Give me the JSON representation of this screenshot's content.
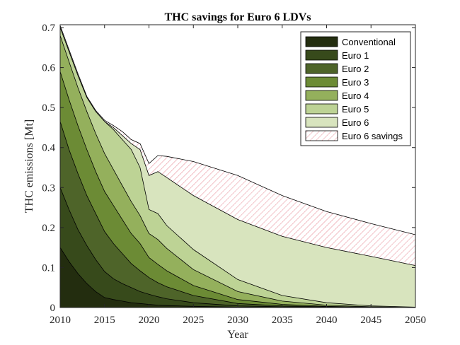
{
  "chart_data": {
    "type": "area",
    "title": "THC savings for Euro 6 LDVs",
    "xlabel": "Year",
    "ylabel": "THC emissions [Mt]",
    "xlim": [
      2010,
      2050
    ],
    "ylim": [
      0,
      0.7
    ],
    "xticks": [
      "2010",
      "2015",
      "2020",
      "2025",
      "2030",
      "2035",
      "2040",
      "2045",
      "2050"
    ],
    "yticks": [
      "0",
      "0.1",
      "0.2",
      "0.3",
      "0.4",
      "0.5",
      "0.6",
      "0.7"
    ],
    "legend_position": "top-right",
    "stacking": "cumulative",
    "x": [
      2010,
      2011,
      2012,
      2013,
      2014,
      2015,
      2016,
      2017,
      2018,
      2019,
      2020,
      2021,
      2022,
      2025,
      2030,
      2035,
      2040,
      2045,
      2050
    ],
    "series": [
      {
        "name": "Conventional",
        "color": "#232d0f",
        "values": [
          0.15,
          0.115,
          0.085,
          0.06,
          0.04,
          0.025,
          0.02,
          0.016,
          0.012,
          0.01,
          0.008,
          0.006,
          0.005,
          0.003,
          0.001,
          0.0005,
          0.0002,
          0.0001,
          0.0
        ]
      },
      {
        "name": "Euro 1",
        "color": "#374a1b",
        "values": [
          0.3,
          0.245,
          0.195,
          0.155,
          0.12,
          0.09,
          0.072,
          0.06,
          0.05,
          0.04,
          0.033,
          0.027,
          0.022,
          0.012,
          0.004,
          0.002,
          0.001,
          0.0003,
          0.0
        ]
      },
      {
        "name": "Euro 2",
        "color": "#4e6429",
        "values": [
          0.465,
          0.395,
          0.335,
          0.28,
          0.235,
          0.19,
          0.16,
          0.135,
          0.11,
          0.092,
          0.075,
          0.062,
          0.052,
          0.03,
          0.01,
          0.004,
          0.002,
          0.0005,
          0.0
        ]
      },
      {
        "name": "Euro 3",
        "color": "#6c8b35",
        "values": [
          0.59,
          0.52,
          0.455,
          0.395,
          0.34,
          0.29,
          0.255,
          0.22,
          0.185,
          0.16,
          0.125,
          0.108,
          0.092,
          0.055,
          0.02,
          0.008,
          0.003,
          0.001,
          0.0
        ]
      },
      {
        "name": "Euro 4",
        "color": "#94b05c",
        "values": [
          0.68,
          0.615,
          0.55,
          0.49,
          0.435,
          0.385,
          0.345,
          0.305,
          0.265,
          0.23,
          0.185,
          0.17,
          0.148,
          0.095,
          0.04,
          0.016,
          0.006,
          0.002,
          0.0
        ]
      },
      {
        "name": "Euro 5",
        "color": "#bdd395",
        "values": [
          0.7,
          0.64,
          0.58,
          0.525,
          0.49,
          0.465,
          0.445,
          0.42,
          0.395,
          0.35,
          0.245,
          0.235,
          0.205,
          0.145,
          0.07,
          0.03,
          0.012,
          0.004,
          0.001
        ]
      },
      {
        "name": "Euro 6",
        "color": "#d8e4be",
        "values": [
          0.7,
          0.64,
          0.58,
          0.525,
          0.49,
          0.465,
          0.45,
          0.43,
          0.41,
          0.395,
          0.33,
          0.34,
          0.325,
          0.28,
          0.22,
          0.178,
          0.15,
          0.128,
          0.105
        ]
      },
      {
        "name": "Euro 6 savings",
        "color": "#ffffff",
        "hatch": "#e06a78",
        "values": [
          0.705,
          0.645,
          0.585,
          0.528,
          0.493,
          0.468,
          0.455,
          0.44,
          0.42,
          0.41,
          0.36,
          0.38,
          0.378,
          0.365,
          0.33,
          0.28,
          0.24,
          0.21,
          0.182
        ]
      }
    ]
  }
}
